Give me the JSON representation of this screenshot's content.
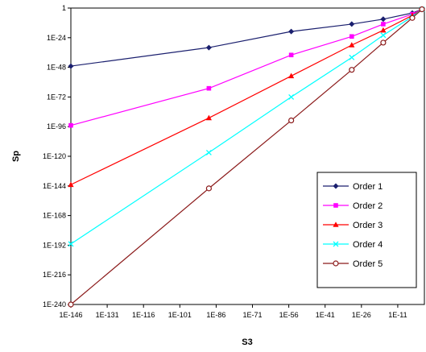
{
  "chart_data": {
    "type": "line",
    "title": "",
    "xlabel": "S3",
    "ylabel": "Sp",
    "x_scale": "log10",
    "y_scale": "log10",
    "xlim_exponent": [
      -146,
      0
    ],
    "ylim_exponent": [
      -240,
      0
    ],
    "x_ticks": [
      "1E-146",
      "1E-131",
      "1E-116",
      "1E-101",
      "1E-86",
      "1E-71",
      "1E-56",
      "1E-41",
      "1E-26",
      "1E-11"
    ],
    "y_ticks": [
      "1",
      "1E-24",
      "1E-48",
      "1E-72",
      "1E-96",
      "1E-120",
      "1E-144",
      "1E-168",
      "1E-192",
      "1E-216",
      "1E-240"
    ],
    "grid": false,
    "legend_position": "right",
    "series": [
      {
        "name": "Order 1",
        "color": "#1a1f6e",
        "marker": "diamond",
        "points": [
          [
            "1E-146",
            "1E-47"
          ],
          [
            "1E-89",
            "1E-32"
          ],
          [
            "1E-55",
            "1E-19"
          ],
          [
            "1E-30",
            "1E-13"
          ],
          [
            "1E-17",
            "1E-9"
          ],
          [
            "1E-5",
            "1E-4"
          ],
          [
            "1E-1",
            "1E-1"
          ]
        ]
      },
      {
        "name": "Order 2",
        "color": "#ff00ff",
        "marker": "square",
        "points": [
          [
            "1E-146",
            "1E-95"
          ],
          [
            "1E-89",
            "1E-65"
          ],
          [
            "1E-55",
            "1E-38"
          ],
          [
            "1E-30",
            "1E-23"
          ],
          [
            "1E-17",
            "1E-13"
          ],
          [
            "1E-5",
            "1E-5"
          ],
          [
            "1E-1",
            "1E-1"
          ]
        ]
      },
      {
        "name": "Order 3",
        "color": "#ff0000",
        "marker": "triangle",
        "points": [
          [
            "1E-146",
            "1E-143"
          ],
          [
            "1E-89",
            "1E-89"
          ],
          [
            "1E-55",
            "1E-55"
          ],
          [
            "1E-30",
            "1E-30"
          ],
          [
            "1E-17",
            "1E-18"
          ],
          [
            "1E-5",
            "1E-6"
          ],
          [
            "1E-1",
            "1E-1"
          ]
        ]
      },
      {
        "name": "Order 4",
        "color": "#00ffff",
        "marker": "x",
        "points": [
          [
            "1E-146",
            "1E-191"
          ],
          [
            "1E-89",
            "1E-117"
          ],
          [
            "1E-55",
            "1E-72"
          ],
          [
            "1E-30",
            "1E-40"
          ],
          [
            "1E-17",
            "1E-22"
          ],
          [
            "1E-5",
            "1E-7"
          ],
          [
            "1E-1",
            "1E-1"
          ]
        ]
      },
      {
        "name": "Order 5",
        "color": "#8b1a1a",
        "marker": "circle",
        "points": [
          [
            "1E-146",
            "1E-240"
          ],
          [
            "1E-89",
            "1E-146"
          ],
          [
            "1E-55",
            "1E-91"
          ],
          [
            "1E-30",
            "1E-50"
          ],
          [
            "1E-17",
            "1E-28"
          ],
          [
            "1E-5",
            "1E-8"
          ],
          [
            "1E-1",
            "1E-1"
          ]
        ]
      }
    ]
  }
}
